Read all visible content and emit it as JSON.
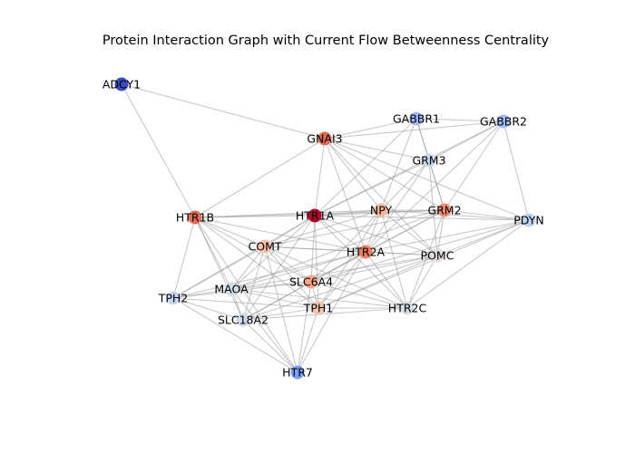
{
  "title": "Protein Interaction Graph with Current Flow Betweenness Centrality",
  "chart_data": {
    "type": "network",
    "colormap": "coolwarm",
    "nodes": [
      {
        "id": "ADCY1",
        "color": "#3b4cc0"
      },
      {
        "id": "GABBR1",
        "color": "#9db9f8"
      },
      {
        "id": "GABBR2",
        "color": "#9fbcf6"
      },
      {
        "id": "GNAI3",
        "color": "#e16751"
      },
      {
        "id": "GRM3",
        "color": "#c7d7f0"
      },
      {
        "id": "HTR1B",
        "color": "#e36c55"
      },
      {
        "id": "HTR1A",
        "color": "#b40426"
      },
      {
        "id": "NPY",
        "color": "#f6b89b"
      },
      {
        "id": "GRM2",
        "color": "#f08a6c"
      },
      {
        "id": "PDYN",
        "color": "#bfd3f6"
      },
      {
        "id": "COMT",
        "color": "#f5c2a8"
      },
      {
        "id": "HTR2A",
        "color": "#ec7f63"
      },
      {
        "id": "POMC",
        "color": "#e0dbd8"
      },
      {
        "id": "SLC6A4",
        "color": "#f4a688"
      },
      {
        "id": "MAOA",
        "color": "#d2dbe8"
      },
      {
        "id": "TPH2",
        "color": "#c6d6f1"
      },
      {
        "id": "TPH1",
        "color": "#f4c5ad"
      },
      {
        "id": "HTR2C",
        "color": "#d3dbe7"
      },
      {
        "id": "SLC18A2",
        "color": "#cdd9ec"
      },
      {
        "id": "HTR7",
        "color": "#7b9ff9"
      }
    ],
    "edges": [
      [
        "ADCY1",
        "HTR1B"
      ],
      [
        "ADCY1",
        "GNAI3"
      ],
      [
        "GNAI3",
        "GABBR1"
      ],
      [
        "GNAI3",
        "GABBR2"
      ],
      [
        "GNAI3",
        "GRM3"
      ],
      [
        "GNAI3",
        "HTR1A"
      ],
      [
        "GNAI3",
        "HTR1B"
      ],
      [
        "GNAI3",
        "NPY"
      ],
      [
        "GNAI3",
        "GRM2"
      ],
      [
        "GNAI3",
        "PDYN"
      ],
      [
        "GNAI3",
        "POMC"
      ],
      [
        "GNAI3",
        "HTR2A"
      ],
      [
        "GABBR1",
        "GABBR2"
      ],
      [
        "GABBR1",
        "GRM3"
      ],
      [
        "GABBR1",
        "GRM2"
      ],
      [
        "GABBR1",
        "NPY"
      ],
      [
        "GABBR1",
        "HTR1A"
      ],
      [
        "GABBR2",
        "GRM3"
      ],
      [
        "GABBR2",
        "GRM2"
      ],
      [
        "GABBR2",
        "HTR1A"
      ],
      [
        "GABBR2",
        "PDYN"
      ],
      [
        "GABBR2",
        "HTR2A"
      ],
      [
        "GRM3",
        "GRM2"
      ],
      [
        "GRM3",
        "HTR1A"
      ],
      [
        "GRM3",
        "NPY"
      ],
      [
        "GRM3",
        "POMC"
      ],
      [
        "GRM3",
        "HTR2A"
      ],
      [
        "HTR1B",
        "HTR1A"
      ],
      [
        "HTR1B",
        "NPY"
      ],
      [
        "HTR1B",
        "GRM2"
      ],
      [
        "HTR1B",
        "COMT"
      ],
      [
        "HTR1B",
        "SLC6A4"
      ],
      [
        "HTR1B",
        "MAOA"
      ],
      [
        "HTR1B",
        "TPH2"
      ],
      [
        "HTR1B",
        "SLC18A2"
      ],
      [
        "HTR1B",
        "HTR2A"
      ],
      [
        "HTR1B",
        "TPH1"
      ],
      [
        "HTR1B",
        "HTR7"
      ],
      [
        "HTR1A",
        "NPY"
      ],
      [
        "HTR1A",
        "GRM2"
      ],
      [
        "HTR1A",
        "PDYN"
      ],
      [
        "HTR1A",
        "COMT"
      ],
      [
        "HTR1A",
        "HTR2A"
      ],
      [
        "HTR1A",
        "POMC"
      ],
      [
        "HTR1A",
        "SLC6A4"
      ],
      [
        "HTR1A",
        "TPH1"
      ],
      [
        "HTR1A",
        "HTR2C"
      ],
      [
        "HTR1A",
        "MAOA"
      ],
      [
        "HTR1A",
        "TPH2"
      ],
      [
        "HTR1A",
        "SLC18A2"
      ],
      [
        "NPY",
        "GRM2"
      ],
      [
        "NPY",
        "PDYN"
      ],
      [
        "NPY",
        "HTR2A"
      ],
      [
        "NPY",
        "POMC"
      ],
      [
        "NPY",
        "COMT"
      ],
      [
        "NPY",
        "SLC6A4"
      ],
      [
        "NPY",
        "HTR2C"
      ],
      [
        "NPY",
        "TPH1"
      ],
      [
        "GRM2",
        "PDYN"
      ],
      [
        "GRM2",
        "HTR2A"
      ],
      [
        "GRM2",
        "POMC"
      ],
      [
        "GRM2",
        "COMT"
      ],
      [
        "GRM2",
        "SLC6A4"
      ],
      [
        "GRM2",
        "HTR2C"
      ],
      [
        "GRM2",
        "MAOA"
      ],
      [
        "PDYN",
        "POMC"
      ],
      [
        "PDYN",
        "HTR2A"
      ],
      [
        "PDYN",
        "HTR2C"
      ],
      [
        "PDYN",
        "SLC6A4"
      ],
      [
        "PDYN",
        "TPH1"
      ],
      [
        "COMT",
        "HTR2A"
      ],
      [
        "COMT",
        "SLC6A4"
      ],
      [
        "COMT",
        "MAOA"
      ],
      [
        "COMT",
        "TPH2"
      ],
      [
        "COMT",
        "TPH1"
      ],
      [
        "COMT",
        "SLC18A2"
      ],
      [
        "COMT",
        "HTR2C"
      ],
      [
        "COMT",
        "POMC"
      ],
      [
        "COMT",
        "HTR7"
      ],
      [
        "HTR2A",
        "POMC"
      ],
      [
        "HTR2A",
        "SLC6A4"
      ],
      [
        "HTR2A",
        "MAOA"
      ],
      [
        "HTR2A",
        "TPH2"
      ],
      [
        "HTR2A",
        "TPH1"
      ],
      [
        "HTR2A",
        "HTR2C"
      ],
      [
        "HTR2A",
        "SLC18A2"
      ],
      [
        "HTR2A",
        "HTR7"
      ],
      [
        "POMC",
        "SLC6A4"
      ],
      [
        "POMC",
        "MAOA"
      ],
      [
        "POMC",
        "TPH1"
      ],
      [
        "POMC",
        "HTR2C"
      ],
      [
        "POMC",
        "SLC18A2"
      ],
      [
        "SLC6A4",
        "MAOA"
      ],
      [
        "SLC6A4",
        "TPH2"
      ],
      [
        "SLC6A4",
        "TPH1"
      ],
      [
        "SLC6A4",
        "SLC18A2"
      ],
      [
        "SLC6A4",
        "HTR2C"
      ],
      [
        "SLC6A4",
        "HTR7"
      ],
      [
        "MAOA",
        "TPH2"
      ],
      [
        "MAOA",
        "TPH1"
      ],
      [
        "MAOA",
        "SLC18A2"
      ],
      [
        "MAOA",
        "HTR2C"
      ],
      [
        "MAOA",
        "HTR7"
      ],
      [
        "TPH2",
        "SLC18A2"
      ],
      [
        "TPH2",
        "TPH1"
      ],
      [
        "TPH2",
        "HTR7"
      ],
      [
        "TPH1",
        "SLC18A2"
      ],
      [
        "TPH1",
        "HTR2C"
      ],
      [
        "TPH1",
        "HTR7"
      ],
      [
        "SLC18A2",
        "HTR2C"
      ],
      [
        "SLC18A2",
        "HTR7"
      ]
    ]
  }
}
